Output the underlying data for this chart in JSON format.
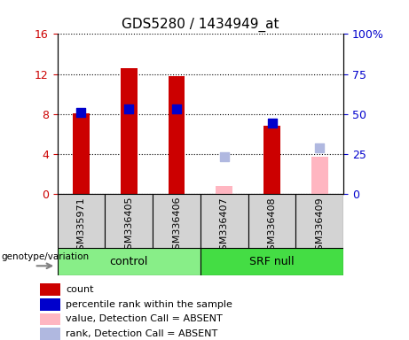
{
  "title": "GDS5280 / 1434949_at",
  "samples": [
    "GSM335971",
    "GSM336405",
    "GSM336406",
    "GSM336407",
    "GSM336408",
    "GSM336409"
  ],
  "groups": [
    "control",
    "control",
    "control",
    "SRF null",
    "SRF null",
    "SRF null"
  ],
  "red_bars": [
    8.1,
    12.6,
    11.8,
    null,
    6.8,
    null
  ],
  "blue_squares": [
    51,
    53,
    53,
    null,
    44,
    null
  ],
  "pink_bars": [
    null,
    null,
    null,
    0.8,
    null,
    3.7
  ],
  "lavender_squares": [
    null,
    null,
    null,
    23,
    null,
    29
  ],
  "ylim_left": [
    0,
    16
  ],
  "ylim_right": [
    0,
    100
  ],
  "yticks_left": [
    0,
    4,
    8,
    12,
    16
  ],
  "ytick_labels_left": [
    "0",
    "4",
    "8",
    "12",
    "16"
  ],
  "yticks_right": [
    0,
    25,
    50,
    75,
    100
  ],
  "ytick_labels_right": [
    "0",
    "25",
    "50",
    "75",
    "100%"
  ],
  "color_red": "#cc0000",
  "color_blue": "#0000cc",
  "color_pink": "#ffb6c1",
  "color_lavender": "#b0b8e0",
  "color_control_bg": "#88ee88",
  "color_srf_bg": "#44dd44",
  "color_axis_label_left": "#cc0000",
  "color_axis_label_right": "#0000cc",
  "bar_width": 0.35,
  "square_size": 60,
  "legend_items": [
    {
      "label": "count",
      "color": "#cc0000"
    },
    {
      "label": "percentile rank within the sample",
      "color": "#0000cc"
    },
    {
      "label": "value, Detection Call = ABSENT",
      "color": "#ffb6c1"
    },
    {
      "label": "rank, Detection Call = ABSENT",
      "color": "#b0b8e0"
    }
  ],
  "genotype_label": "genotype/variation"
}
